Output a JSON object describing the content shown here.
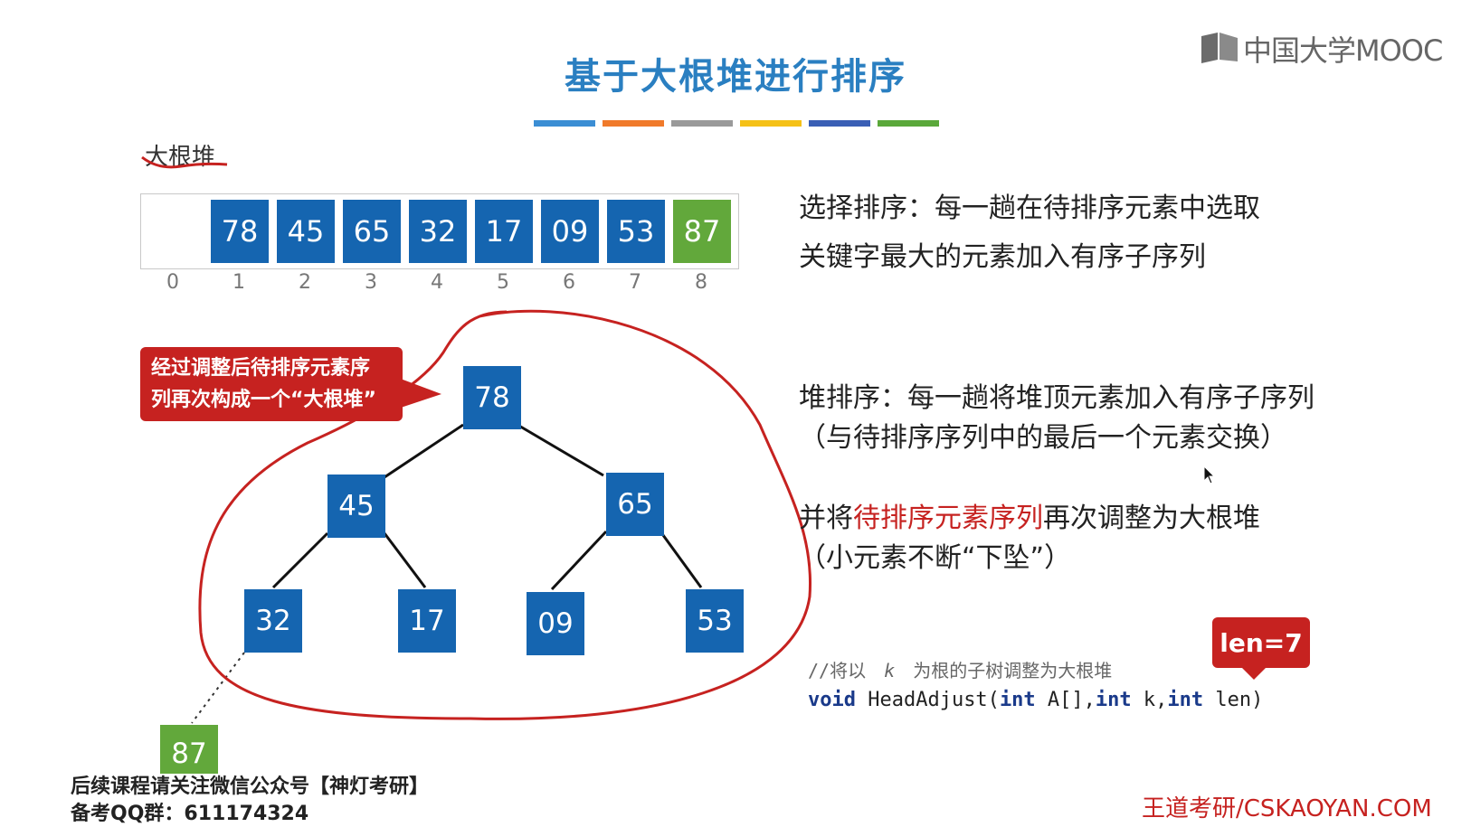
{
  "slide": {
    "title": "基于大根堆进行排序",
    "colors": {
      "blue": "#1565b0",
      "green": "#62a83b",
      "red": "#c62220",
      "title": "#2a7fc1"
    },
    "color_strip": [
      "#3b8ed4",
      "#f07a2a",
      "#9a9a9a",
      "#f5c117",
      "#3a5fb5",
      "#5aa83a"
    ]
  },
  "logo": {
    "text": "中国大学MOOC",
    "icon": "mooc-logo-icon"
  },
  "heap_label": "大根堆",
  "array": {
    "values": [
      "",
      "78",
      "45",
      "65",
      "32",
      "17",
      "09",
      "53",
      "87"
    ],
    "indices": [
      "0",
      "1",
      "2",
      "3",
      "4",
      "5",
      "6",
      "7",
      "8"
    ],
    "sorted_from_index": 8
  },
  "tree": {
    "nodes": [
      "78",
      "45",
      "65",
      "32",
      "17",
      "09",
      "53"
    ],
    "removed_node": "87"
  },
  "callout": {
    "line1": "经过调整后待排序元素序",
    "line2": "列再次构成一个“大根堆”"
  },
  "text": {
    "selection_sort_line1": "选择排序：每一趟在待排序元素中选取",
    "selection_sort_line2": "关键字最大的元素加入有序子序列",
    "heap_sort_line1": "堆排序：每一趟将堆顶元素加入有序子序列",
    "heap_sort_line2": "（与待排序序列中的最后一个元素交换）",
    "adjust_prefix": "并将",
    "adjust_highlight": "待排序元素序列",
    "adjust_suffix": "再次调整为大根堆",
    "adjust_line2": "（小元素不断“下坠”）"
  },
  "code": {
    "comment_prefix": "//将以",
    "comment_var": "k",
    "comment_suffix": "为根的子树调整为大根堆",
    "void": "void",
    "fn": " HeadAdjust(",
    "int1": "int",
    "p1": " A[],",
    "int2": "int",
    "p2": " k,",
    "int3": "int",
    "p3": " len)"
  },
  "len_badge": "len=7",
  "footer": {
    "line1": "后续课程请关注微信公众号【神灯考研】",
    "line2": "备考QQ群：611174324",
    "site": "王道考研/CSKAOYAN.COM"
  }
}
